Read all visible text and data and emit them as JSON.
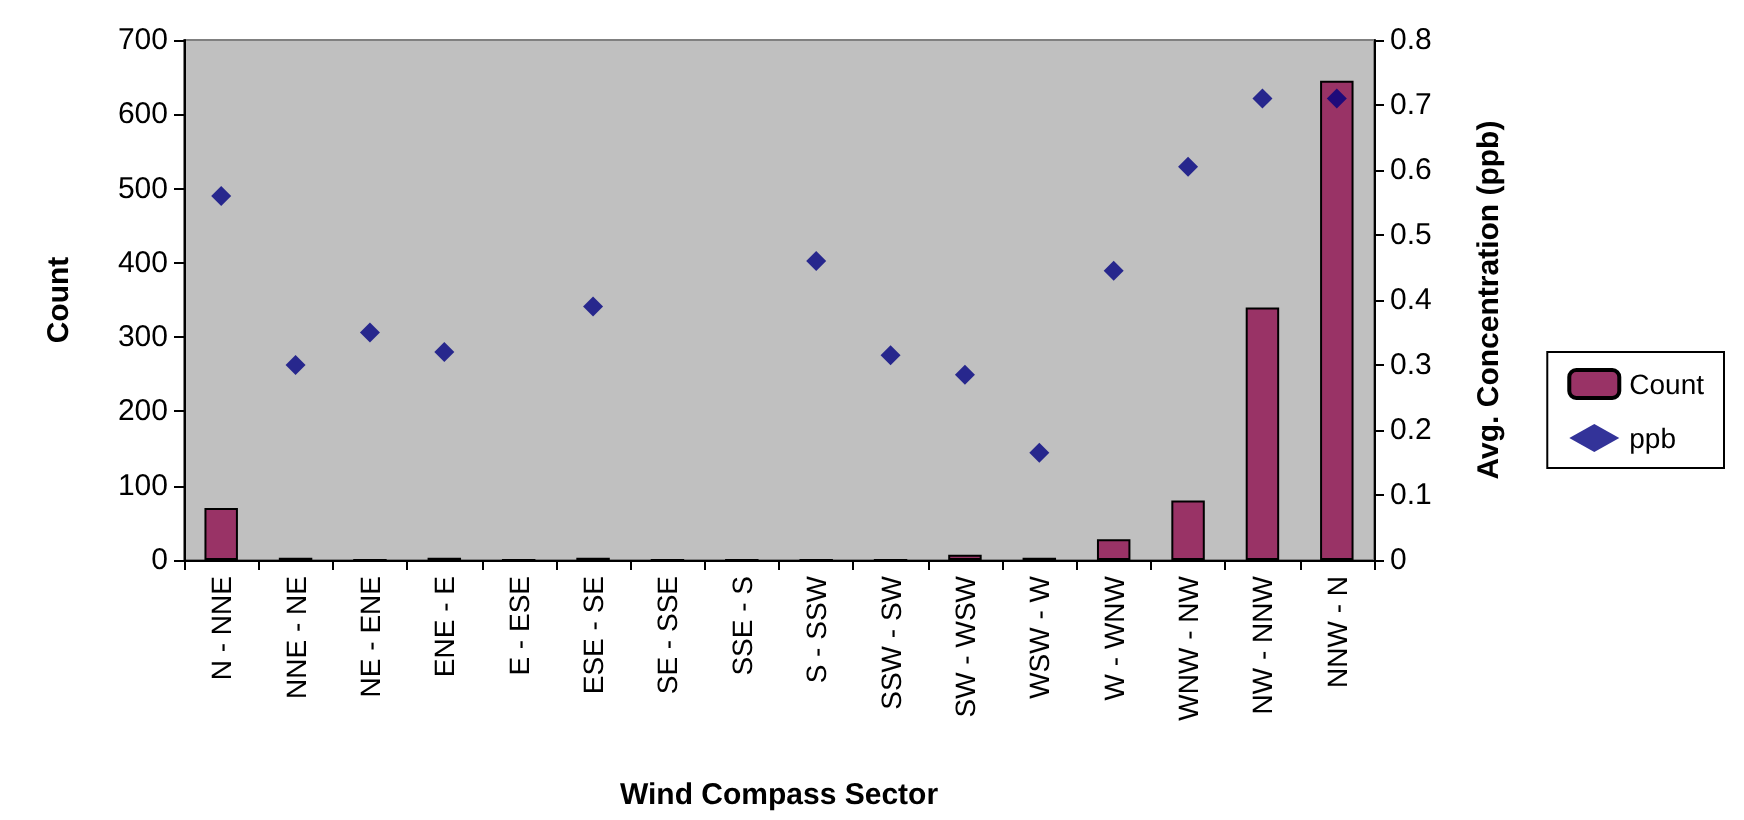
{
  "chart_data": {
    "type": "bar",
    "categories": [
      "N - NNE",
      "NNE - NE",
      "NE - ENE",
      "ENE - E",
      "E - ESE",
      "ESE - SE",
      "SE - SSE",
      "SSE - S",
      "S - SSW",
      "SSW - SW",
      "SW - WSW",
      "WSW - W",
      "W - WNW",
      "WNW - NW",
      "NW - NNW",
      "NNW - N"
    ],
    "series": [
      {
        "name": "Count",
        "color": "#993366",
        "values": [
          70,
          3,
          0,
          3,
          0,
          3,
          0,
          0,
          0,
          0,
          7,
          3,
          28,
          80,
          340,
          645
        ]
      },
      {
        "name": "ppb",
        "type": "scatter",
        "axis": "y2",
        "color": "#000080",
        "marker": "diamond",
        "values": [
          0.56,
          0.3,
          0.35,
          0.32,
          null,
          0.39,
          null,
          null,
          0.46,
          0.315,
          0.285,
          0.165,
          0.445,
          0.605,
          0.71,
          0.71
        ]
      }
    ],
    "xlabel": "Wind Compass Sector",
    "ylabel": "Count",
    "y2label": "Avg. Concentration (ppb)",
    "ylim": [
      0,
      700
    ],
    "yticks": [
      0,
      100,
      200,
      300,
      400,
      500,
      600,
      700
    ],
    "y2lim": [
      0,
      0.8
    ],
    "y2ticks": [
      0,
      0.1,
      0.2,
      0.3,
      0.4,
      0.5,
      0.6,
      0.7,
      0.8
    ],
    "grid": false,
    "legend": "right"
  }
}
